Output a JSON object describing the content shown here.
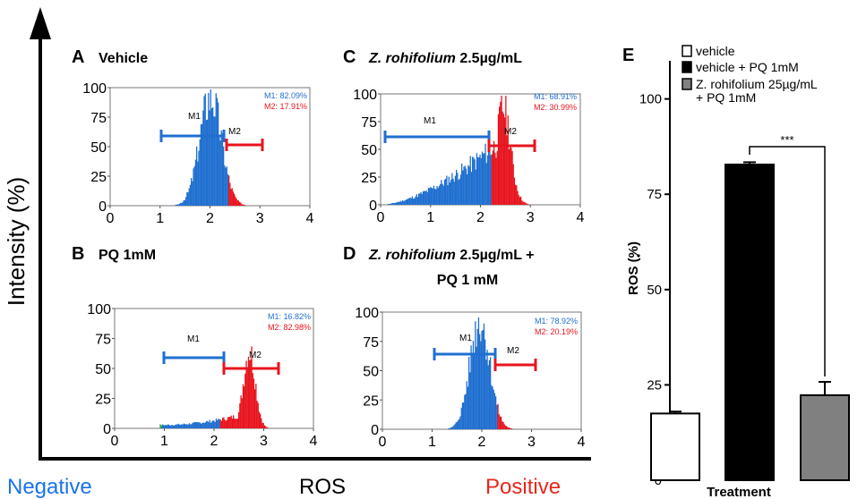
{
  "figure": {
    "y_axis_label": "Intensity (%)",
    "x_axis_label": "ROS",
    "negative_label": "Negative",
    "positive_label": "Positive",
    "negative_color": "#1a73e8",
    "positive_color": "#e8261a"
  },
  "colors": {
    "m1": "#1f6fd0",
    "m2": "#e8141e",
    "green": "#2a9d3a"
  },
  "panels": [
    {
      "letter": "A",
      "title": "Vehicle",
      "title_italic": "",
      "title_line2": "",
      "m1_label": "M1",
      "m2_label": "M2",
      "m1_stat": "M1: 82.09%",
      "m2_stat": "M2: 17.91%",
      "y_ticks": [
        "100",
        "75",
        "50",
        "25",
        "0"
      ],
      "x_ticks": [
        "0",
        "1",
        "2",
        "3",
        "4"
      ]
    },
    {
      "letter": "B",
      "title": "PQ 1mM",
      "title_italic": "",
      "title_line2": "",
      "m1_label": "M1",
      "m2_label": "M2",
      "m1_stat": "M1: 16.82%",
      "m2_stat": "M2: 82.98%",
      "y_ticks": [
        "100",
        "75",
        "50",
        "25",
        "0"
      ],
      "x_ticks": [
        "0",
        "1",
        "2",
        "3",
        "4"
      ]
    },
    {
      "letter": "C",
      "title": " 2.5µg/mL",
      "title_italic": "Z. rohifolium",
      "title_line2": "",
      "m1_label": "M1",
      "m2_label": "M2",
      "m1_stat": "M1: 68.91%",
      "m2_stat": "M2: 30.99%",
      "y_ticks": [
        "100",
        "75",
        "50",
        "25",
        "0"
      ],
      "x_ticks": [
        "0",
        "1",
        "2",
        "3",
        "4"
      ]
    },
    {
      "letter": "D",
      "title": " 2.5µg/mL +",
      "title_italic": "Z. rohifolium",
      "title_line2": "PQ 1 mM",
      "m1_label": "M1",
      "m2_label": "M2",
      "m1_stat": "M1: 78.92%",
      "m2_stat": "M2: 20.19%",
      "y_ticks": [
        "100",
        "75",
        "50",
        "25",
        "0"
      ],
      "x_ticks": [
        "0",
        "1",
        "2",
        "3",
        "4"
      ]
    }
  ],
  "chart_data": {
    "type": "bar",
    "panel_letter": "E",
    "title": "",
    "xlabel": "Treatment",
    "ylabel": "ROS (%)",
    "ylim": [
      0,
      110
    ],
    "y_ticks": [
      "0",
      "25",
      "50",
      "75",
      "100"
    ],
    "categories": [
      "vehicle",
      "vehicle + PQ 1mM",
      "Z. rohifolium 25µg/mL + PQ 1mM"
    ],
    "values": [
      17.5,
      82.8,
      22.3
    ],
    "errors": [
      0.5,
      0.6,
      3.5
    ],
    "bar_colors": [
      "#ffffff",
      "#000000",
      "#808080"
    ],
    "legend": [
      "vehicle",
      "vehicle + PQ 1mM",
      "Z. rohifolium 25µg/mL",
      "+ PQ 1mM"
    ],
    "significance": "***",
    "grid": false,
    "legend_position": "top"
  }
}
